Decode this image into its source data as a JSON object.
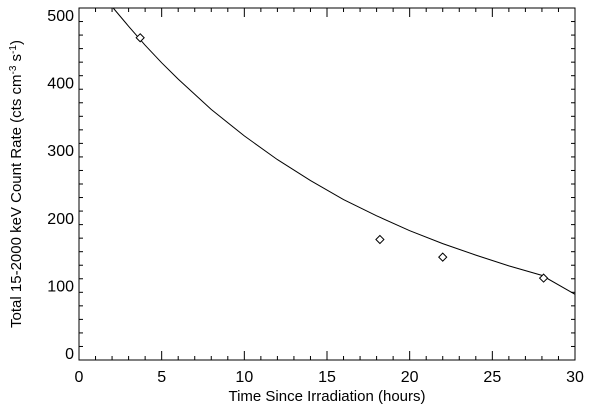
{
  "chart_data": {
    "type": "scatter",
    "title": "",
    "xlabel": "Time Since Irradiation (hours)",
    "ylabel": {
      "base": "Total 15-2000 keV Count Rate (cts cm",
      "exp1": "-3",
      "mid": " s",
      "exp2": "-1",
      "end": ")"
    },
    "xlim": [
      0,
      30
    ],
    "ylim": [
      -10,
      510
    ],
    "xticks": [
      0,
      5,
      10,
      15,
      20,
      25,
      30
    ],
    "yticks": [
      0,
      100,
      200,
      300,
      400,
      500
    ],
    "grid": false,
    "legend": "none",
    "series": [
      {
        "marker": "diamond",
        "x": [
          3.7,
          18.2,
          22.0,
          28.1
        ],
        "y": [
          466,
          168,
          142,
          111
        ]
      }
    ],
    "fit_curve": {
      "style": "line",
      "x": [
        2.0,
        3.0,
        4.0,
        5.0,
        6.0,
        8.0,
        10.0,
        12.0,
        14.0,
        16.0,
        18.0,
        20.0,
        22.0,
        24.0,
        26.0,
        28.0,
        30.0
      ],
      "y": [
        512,
        483,
        455,
        429,
        405,
        360,
        321,
        286,
        255,
        227,
        203,
        181,
        162,
        145,
        129,
        115,
        87
      ]
    }
  }
}
